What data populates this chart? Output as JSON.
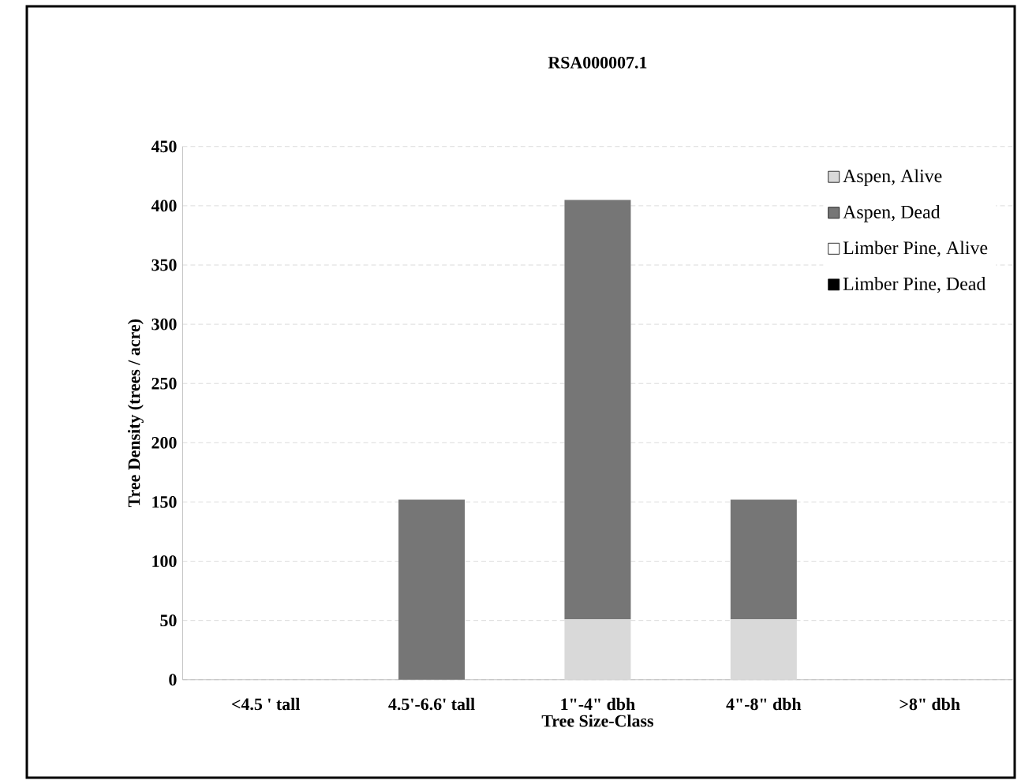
{
  "chart_data": {
    "type": "bar",
    "title": "RSA000007.1",
    "xlabel": "Tree Size-Class",
    "ylabel": "Tree Density (trees / acre)",
    "categories": [
      "<4.5 ' tall",
      "4.5'-6.6' tall",
      "1\"-4\" dbh",
      "4\"-8\" dbh",
      ">8\" dbh"
    ],
    "stacked": true,
    "series": [
      {
        "name": "Aspen, Alive",
        "color": "#d9d9d9",
        "values": [
          0,
          0,
          51,
          51,
          0
        ]
      },
      {
        "name": "Aspen, Dead",
        "color": "#767676",
        "values": [
          0,
          152,
          354,
          101,
          0
        ]
      },
      {
        "name": "Limber Pine, Alive",
        "color": "#ffffff",
        "values": [
          0,
          0,
          0,
          0,
          0
        ]
      },
      {
        "name": "Limber Pine, Dead",
        "color": "#000000",
        "values": [
          0,
          0,
          0,
          0,
          0
        ]
      }
    ],
    "ylim": [
      0,
      450
    ],
    "yticks": [
      0,
      50,
      100,
      150,
      200,
      250,
      300,
      350,
      400,
      450
    ],
    "grid": "y",
    "legend": "top right"
  }
}
